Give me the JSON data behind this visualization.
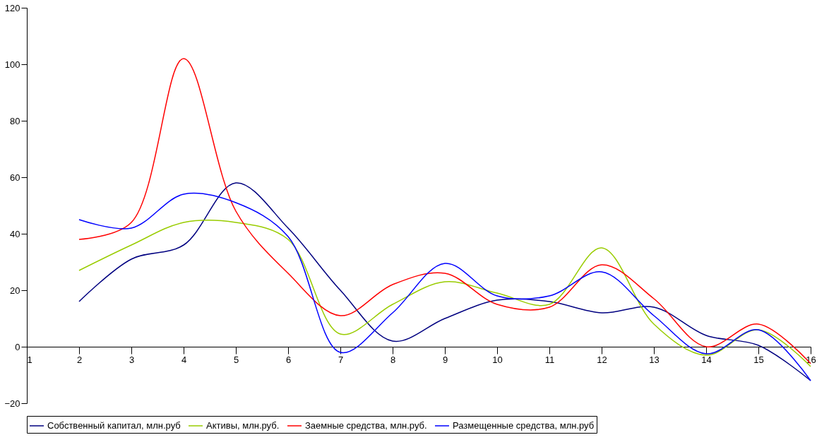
{
  "chart_data": {
    "type": "line",
    "x": [
      2,
      3,
      4,
      5,
      6,
      7,
      8,
      9,
      10,
      11,
      12,
      13,
      14,
      15,
      16
    ],
    "xlim": [
      1,
      16
    ],
    "xticks": [
      1,
      2,
      3,
      4,
      5,
      6,
      7,
      8,
      9,
      10,
      11,
      12,
      13,
      14,
      15,
      16
    ],
    "ylim": [
      -20,
      120
    ],
    "yticks": [
      -20,
      0,
      20,
      40,
      60,
      80,
      100,
      120
    ],
    "grid": false,
    "legend": "bottom",
    "marker": "none",
    "line_style": "solid",
    "series": [
      {
        "name": "Собственный капитал, млн.руб",
        "color": "#000080",
        "values": [
          16,
          31,
          36,
          58,
          42,
          20,
          2,
          10,
          16.5,
          16,
          12,
          14,
          4,
          0.5,
          -12
        ]
      },
      {
        "name": "Активы, млн.руб.",
        "color": "#99cc00",
        "values": [
          27,
          36,
          44,
          44,
          38,
          4.5,
          15,
          23,
          19,
          15,
          35,
          8,
          -3,
          6,
          -7
        ]
      },
      {
        "name": "Заемные средства, млн.руб.",
        "color": "#ff0000",
        "values": [
          38,
          44,
          102,
          48,
          26,
          11,
          22,
          26,
          15,
          14,
          29,
          17,
          0,
          8,
          -6
        ]
      },
      {
        "name": "Размещенные средства, млн.руб",
        "color": "#0000ff",
        "values": [
          45,
          42,
          54,
          51,
          39,
          -2,
          12,
          29.5,
          18,
          18,
          26.5,
          11,
          -2.5,
          6,
          -12
        ]
      }
    ]
  }
}
